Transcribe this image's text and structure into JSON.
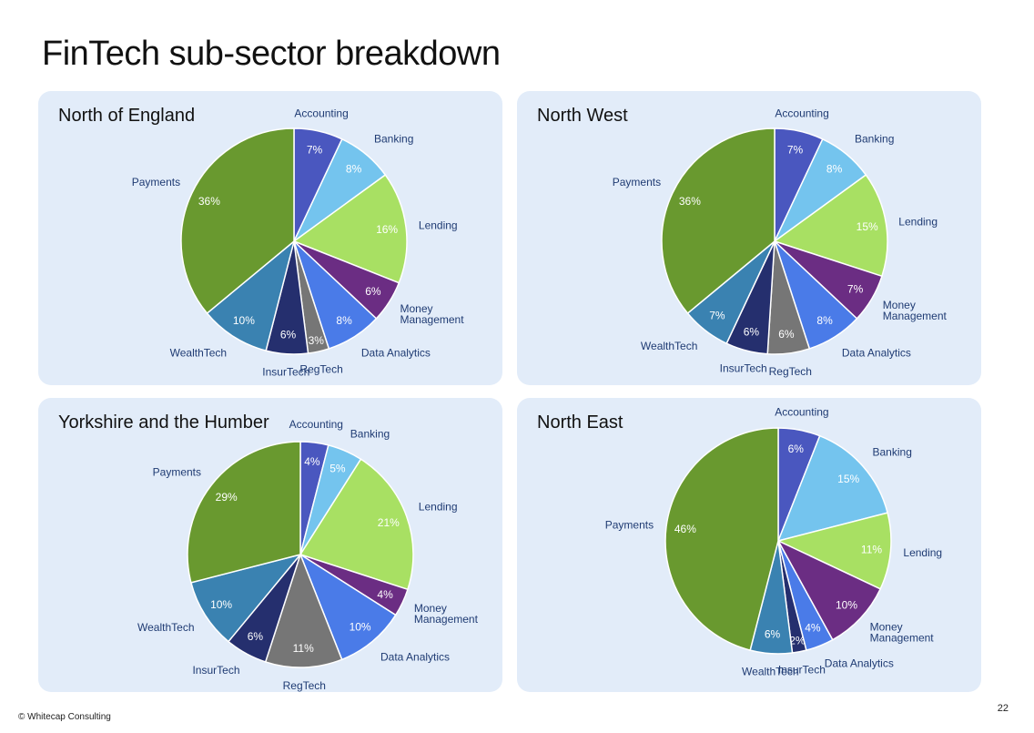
{
  "page": {
    "title": "FinTech sub-sector breakdown",
    "footer": "© Whitecap Consulting",
    "page_number": "22"
  },
  "colors": {
    "Accounting": "#4a57bf",
    "Banking": "#74c4ee",
    "Lending": "#a8e063",
    "Money Management": "#6b2d83",
    "Data Analytics": "#4a7be8",
    "RegTech": "#767676",
    "InsurTech": "#252f6e",
    "WealthTech": "#3a82b1",
    "Payments": "#69992f",
    "label_text": "#1f3b73",
    "panel_bg": "#e2ecf9"
  },
  "chart_data": [
    {
      "type": "pie",
      "title": "North of England",
      "categories": [
        "Accounting",
        "Banking",
        "Lending",
        "Money Management",
        "Data Analytics",
        "RegTech",
        "InsurTech",
        "WealthTech",
        "Payments"
      ],
      "values": [
        7,
        8,
        16,
        6,
        8,
        3,
        6,
        10,
        36
      ],
      "value_labels": [
        "7%",
        "8%",
        "16%",
        "6%",
        "8%",
        "3%",
        "6%",
        "10%",
        "36%"
      ]
    },
    {
      "type": "pie",
      "title": "North West",
      "categories": [
        "Accounting",
        "Banking",
        "Lending",
        "Money Management",
        "Data Analytics",
        "RegTech",
        "InsurTech",
        "WealthTech",
        "Payments"
      ],
      "values": [
        7,
        8,
        15,
        7,
        8,
        6,
        6,
        7,
        36
      ],
      "value_labels": [
        "7%",
        "8%",
        "15%",
        "7%",
        "8%",
        "6%",
        "6%",
        "7%",
        "36%"
      ]
    },
    {
      "type": "pie",
      "title": "Yorkshire and the Humber",
      "categories": [
        "Accounting",
        "Banking",
        "Lending",
        "Money Management",
        "Data Analytics",
        "RegTech",
        "InsurTech",
        "WealthTech",
        "Payments"
      ],
      "values": [
        4,
        5,
        21,
        4,
        10,
        11,
        6,
        10,
        29
      ],
      "value_labels": [
        "4%",
        "5%",
        "21%",
        "4%",
        "10%",
        "11%",
        "6%",
        "10%",
        "29%"
      ]
    },
    {
      "type": "pie",
      "title": "North East",
      "categories": [
        "Accounting",
        "Banking",
        "Lending",
        "Money Management",
        "Data Analytics",
        "InsurTech",
        "WealthTech",
        "Payments"
      ],
      "values": [
        6,
        15,
        11,
        10,
        4,
        2,
        6,
        46
      ],
      "value_labels": [
        "6%",
        "15%",
        "11%",
        "10%",
        "4%",
        "2%",
        "6%",
        "46%"
      ]
    }
  ]
}
